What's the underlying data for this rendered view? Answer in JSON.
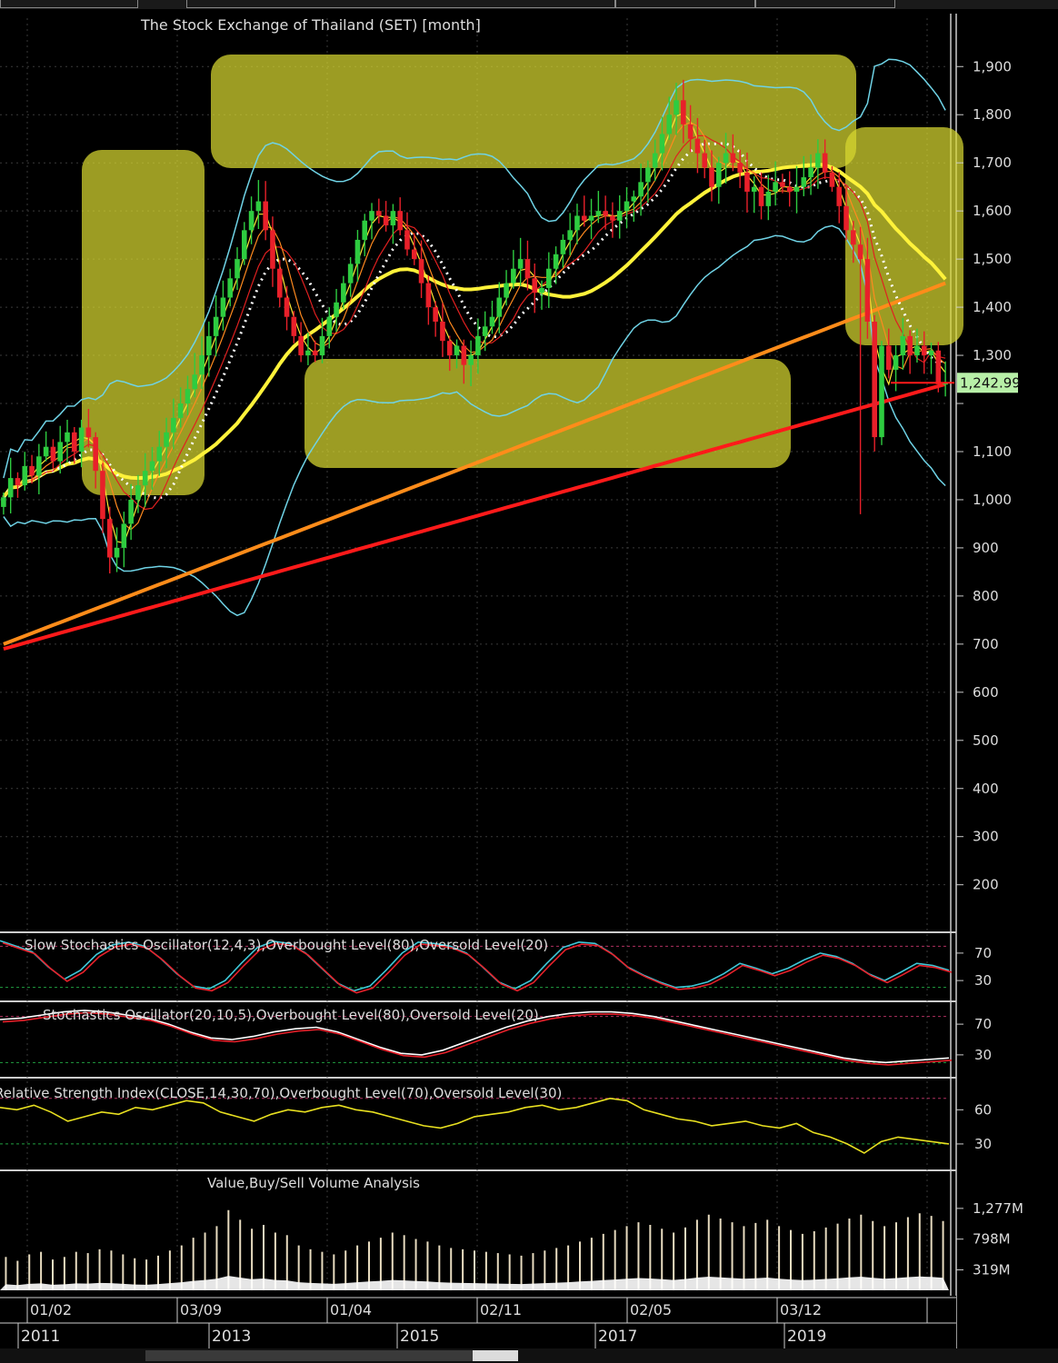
{
  "chart_data": [
    {
      "type": "candlestick",
      "title": "The Stock Exchange of Thailand (SET) [month]",
      "y_ticks": [
        200,
        300,
        400,
        500,
        600,
        700,
        800,
        900,
        1000,
        1100,
        1200,
        1300,
        1400,
        1500,
        1600,
        1700,
        1800,
        1900
      ],
      "y_tick_labels": [
        "200",
        "300",
        "400",
        "500",
        "600",
        "700",
        "800",
        "900",
        "1,000",
        "1,100",
        "",
        "1,300",
        "1,400",
        "1,500",
        "1,600",
        "1,700",
        "1,800",
        "1,900"
      ],
      "ylim": [
        105,
        2010
      ],
      "last_value": 1242.99,
      "last_value_label": "1,242.99",
      "colors": {
        "up": "#2ecc40",
        "down": "#e8202a",
        "last_value_box": "#b8f0a8"
      },
      "closes": [
        1005,
        1045,
        1030,
        1070,
        1050,
        1090,
        1110,
        1080,
        1120,
        1140,
        1100,
        1150,
        1130,
        1060,
        960,
        880,
        900,
        950,
        1000,
        1030,
        1060,
        1080,
        1110,
        1140,
        1170,
        1200,
        1230,
        1260,
        1300,
        1340,
        1380,
        1420,
        1460,
        1500,
        1560,
        1600,
        1620,
        1560,
        1480,
        1420,
        1380,
        1340,
        1300,
        1310,
        1300,
        1340,
        1380,
        1410,
        1450,
        1490,
        1540,
        1580,
        1600,
        1590,
        1570,
        1600,
        1560,
        1520,
        1500,
        1450,
        1400,
        1370,
        1330,
        1300,
        1320,
        1280,
        1300,
        1340,
        1360,
        1380,
        1420,
        1450,
        1480,
        1500,
        1460,
        1430,
        1440,
        1480,
        1510,
        1540,
        1560,
        1590,
        1580,
        1590,
        1600,
        1590,
        1580,
        1600,
        1620,
        1630,
        1660,
        1690,
        1720,
        1760,
        1800,
        1830,
        1780,
        1750,
        1720,
        1690,
        1650,
        1700,
        1720,
        1700,
        1680,
        1640,
        1650,
        1610,
        1640,
        1660,
        1650,
        1640,
        1650,
        1670,
        1690,
        1720,
        1680,
        1650,
        1610,
        1560,
        1530,
        1500,
        1370,
        1130,
        1320,
        1270,
        1300,
        1340,
        1300,
        1320,
        1300,
        1310,
        1240,
        1242.99
      ],
      "overlays": [
        {
          "name": "ma_fast",
          "color": "#ffe833"
        },
        {
          "name": "ma_short",
          "color": "#ff8a1f"
        },
        {
          "name": "ma_red_thin",
          "color": "#e02020"
        },
        {
          "name": "ma_white_dotted",
          "color": "#ffffff"
        },
        {
          "name": "ma_yellow_thick",
          "color": "#fff23a"
        },
        {
          "name": "ma_orange_thick",
          "color": "#ff8c1a"
        },
        {
          "name": "ma_red_thick",
          "color": "#ff1a1a"
        },
        {
          "name": "bollinger",
          "color": "#6fd3e6"
        }
      ],
      "highlight_color": "#d8d830"
    },
    {
      "type": "line",
      "title": "Slow Stochastics Oscillator(12,4,3),Overbought Level(80),Oversold Level(20)",
      "y_ticks": [
        30,
        70
      ],
      "levels": [
        80,
        20
      ],
      "series": [
        {
          "color": "#3ec8d8"
        },
        {
          "color": "#e8202a"
        }
      ],
      "values": [
        88,
        80,
        72,
        50,
        32,
        45,
        68,
        82,
        86,
        80,
        62,
        40,
        22,
        18,
        30,
        55,
        78,
        87,
        84,
        70,
        48,
        26,
        15,
        22,
        45,
        70,
        86,
        84,
        80,
        70,
        50,
        28,
        18,
        30,
        55,
        78,
        86,
        84,
        70,
        50,
        38,
        28,
        20,
        22,
        28,
        40,
        55,
        48,
        40,
        48,
        60,
        70,
        65,
        55,
        40,
        30,
        42,
        55,
        52,
        45
      ]
    },
    {
      "type": "line",
      "title": "Stochastics Oscillator(20,10,5),Overbought Level(80),Oversold Level(20)",
      "y_ticks": [
        30,
        70
      ],
      "levels": [
        80,
        20
      ],
      "series": [
        {
          "color": "#ffffff"
        },
        {
          "color": "#e8202a"
        }
      ],
      "values": [
        76,
        78,
        82,
        86,
        88,
        86,
        82,
        78,
        70,
        60,
        52,
        50,
        54,
        60,
        64,
        66,
        60,
        50,
        40,
        32,
        30,
        36,
        46,
        56,
        66,
        74,
        80,
        84,
        86,
        86,
        84,
        80,
        74,
        68,
        62,
        56,
        50,
        44,
        38,
        32,
        26,
        22,
        20,
        22,
        24,
        26
      ]
    },
    {
      "type": "line",
      "title": "Relative Strength Index(CLOSE,14,30,70),Overbought Level(70),Oversold Level(30)",
      "y_ticks": [
        30,
        60
      ],
      "levels": [
        70,
        30
      ],
      "series": [
        {
          "color": "#e8e020"
        }
      ],
      "values": [
        62,
        60,
        64,
        58,
        50,
        54,
        58,
        56,
        62,
        60,
        64,
        68,
        66,
        58,
        54,
        50,
        56,
        60,
        58,
        62,
        64,
        60,
        58,
        54,
        50,
        46,
        44,
        48,
        54,
        56,
        58,
        62,
        64,
        60,
        62,
        66,
        70,
        68,
        60,
        56,
        52,
        50,
        46,
        48,
        50,
        46,
        44,
        48,
        40,
        36,
        30,
        22,
        32,
        36,
        34,
        32,
        30
      ]
    },
    {
      "type": "bar",
      "title": "Value,Buy/Sell Volume Analysis",
      "y_ticks": [
        319,
        798,
        1277
      ],
      "y_tick_labels": [
        "319M",
        "798M",
        "1,277M"
      ],
      "values": [
        520,
        460,
        560,
        600,
        480,
        520,
        600,
        580,
        640,
        620,
        560,
        500,
        480,
        540,
        620,
        700,
        820,
        900,
        1000,
        1250,
        1100,
        960,
        1020,
        900,
        860,
        700,
        640,
        600,
        560,
        620,
        700,
        760,
        820,
        900,
        860,
        800,
        760,
        700,
        660,
        640,
        620,
        600,
        580,
        560,
        540,
        580,
        620,
        660,
        700,
        760,
        820,
        880,
        940,
        1000,
        1060,
        1020,
        960,
        900,
        980,
        1100,
        1180,
        1120,
        1060,
        1000,
        1050,
        1100,
        1000,
        940,
        880,
        920,
        980,
        1040,
        1120,
        1180,
        1080,
        1000,
        1060,
        1140,
        1200,
        1160,
        1080
      ],
      "colors": {
        "bar": "#e8dcc0",
        "area": "#ffffff"
      }
    }
  ],
  "x_axis": {
    "top_labels": [
      "01/02",
      "03/09",
      "01/04",
      "02/11",
      "02/05",
      "03/12"
    ],
    "bottom_labels": [
      "2011",
      "2013",
      "2015",
      "2017",
      "2019"
    ]
  }
}
